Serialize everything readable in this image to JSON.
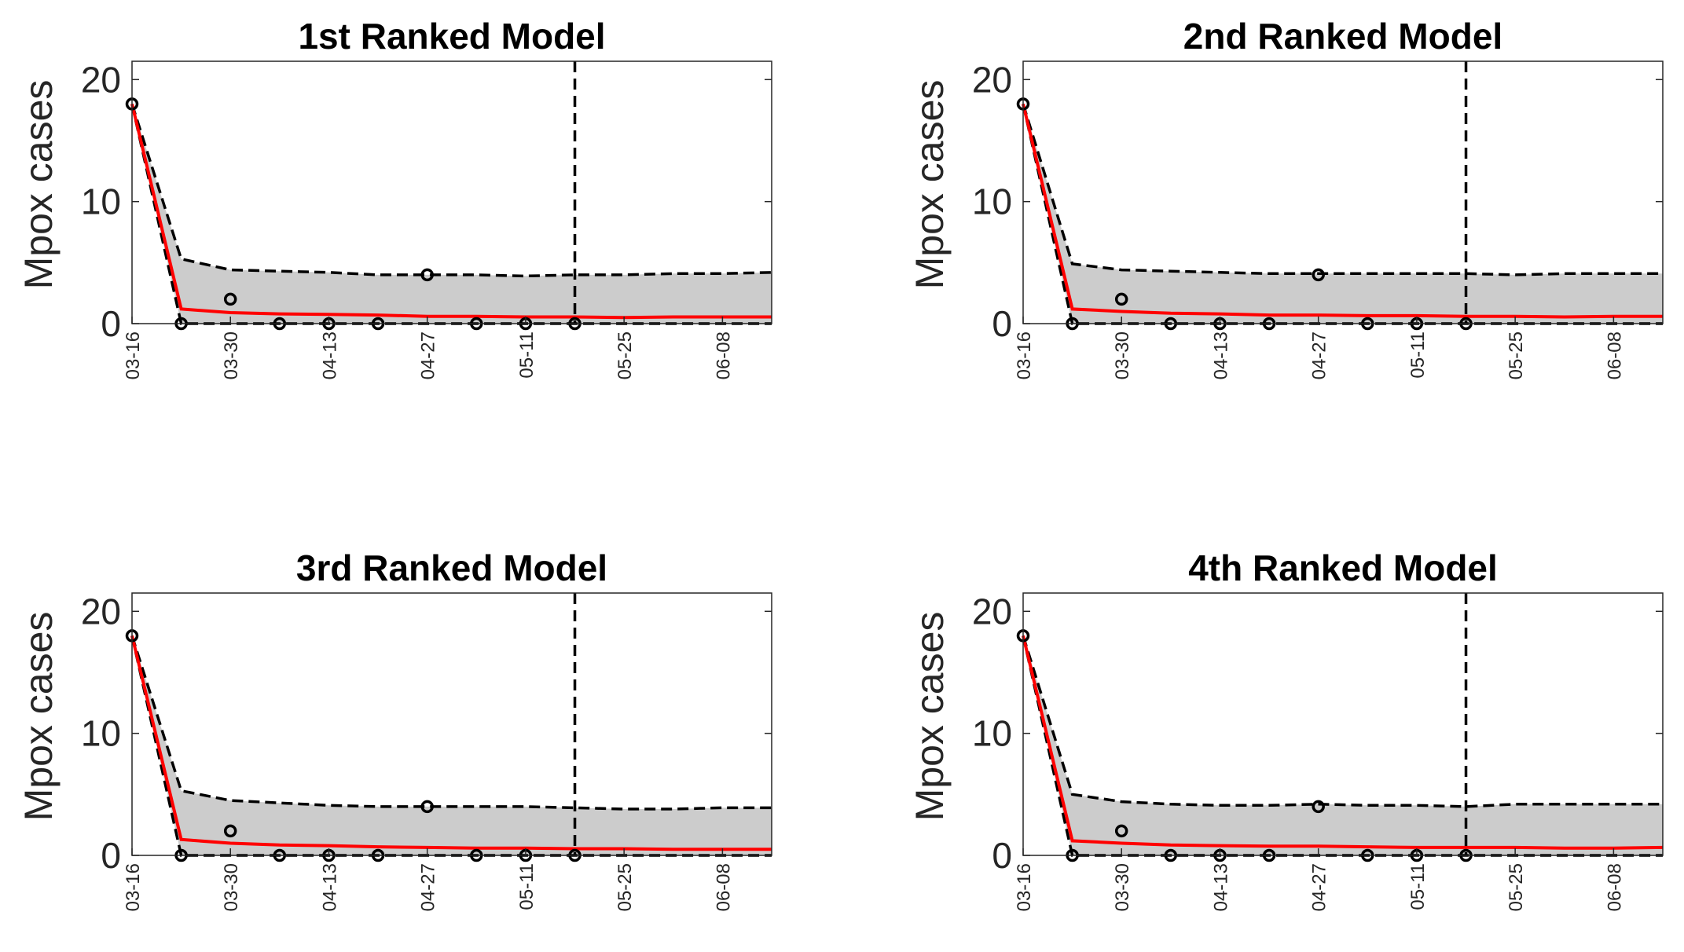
{
  "chart_data": [
    {
      "type": "line",
      "title": "1st Ranked Model",
      "ylabel": "Mpox cases",
      "xlabel": "",
      "ylim": [
        0,
        21.5
      ],
      "yticks": [
        0,
        10,
        20
      ],
      "xticks": [
        "03-16",
        "03-30",
        "04-13",
        "04-27",
        "05-11",
        "05-25",
        "06-08"
      ],
      "grid": false,
      "x": [
        "03-16",
        "03-23",
        "03-30",
        "04-06",
        "04-13",
        "04-20",
        "04-27",
        "05-04",
        "05-11",
        "05-18",
        "05-25",
        "06-01",
        "06-08",
        "06-15"
      ],
      "observed": {
        "x": [
          "03-16",
          "03-23",
          "03-30",
          "04-06",
          "04-13",
          "04-20",
          "04-27",
          "05-04",
          "05-11",
          "05-18"
        ],
        "values": [
          18,
          0,
          2,
          0,
          0,
          0,
          4,
          0,
          0,
          0
        ]
      },
      "forecast_start": "05-18",
      "series": [
        {
          "name": "",
          "role": "mean",
          "color": "#ff0000",
          "values": [
            18,
            1.2,
            0.9,
            0.8,
            0.75,
            0.7,
            0.6,
            0.6,
            0.55,
            0.55,
            0.5,
            0.55,
            0.55,
            0.55
          ]
        },
        {
          "name": "",
          "role": "upper",
          "color": "#000000",
          "values": [
            18,
            5.3,
            4.4,
            4.3,
            4.2,
            4.0,
            4.0,
            4.0,
            3.9,
            4.0,
            4.0,
            4.1,
            4.1,
            4.2
          ]
        },
        {
          "name": "",
          "role": "lower",
          "color": "#000000",
          "values": [
            18,
            0,
            0,
            0,
            0,
            0,
            0,
            0,
            0,
            0,
            0,
            0,
            0,
            0
          ]
        }
      ]
    },
    {
      "type": "line",
      "title": "2nd Ranked Model",
      "ylabel": "Mpox cases",
      "xlabel": "",
      "ylim": [
        0,
        21.5
      ],
      "yticks": [
        0,
        10,
        20
      ],
      "xticks": [
        "03-16",
        "03-30",
        "04-13",
        "04-27",
        "05-11",
        "05-25",
        "06-08"
      ],
      "grid": false,
      "x": [
        "03-16",
        "03-23",
        "03-30",
        "04-06",
        "04-13",
        "04-20",
        "04-27",
        "05-04",
        "05-11",
        "05-18",
        "05-25",
        "06-01",
        "06-08",
        "06-15"
      ],
      "observed": {
        "x": [
          "03-16",
          "03-23",
          "03-30",
          "04-06",
          "04-13",
          "04-20",
          "04-27",
          "05-04",
          "05-11",
          "05-18"
        ],
        "values": [
          18,
          0,
          2,
          0,
          0,
          0,
          4,
          0,
          0,
          0
        ]
      },
      "forecast_start": "05-18",
      "series": [
        {
          "name": "",
          "role": "mean",
          "color": "#ff0000",
          "values": [
            18,
            1.2,
            1.0,
            0.85,
            0.8,
            0.7,
            0.7,
            0.65,
            0.65,
            0.6,
            0.6,
            0.55,
            0.6,
            0.6
          ]
        },
        {
          "name": "",
          "role": "upper",
          "color": "#000000",
          "values": [
            18,
            4.9,
            4.4,
            4.3,
            4.2,
            4.1,
            4.1,
            4.1,
            4.1,
            4.1,
            4.0,
            4.1,
            4.1,
            4.1
          ]
        },
        {
          "name": "",
          "role": "lower",
          "color": "#000000",
          "values": [
            18,
            0,
            0,
            0,
            0,
            0,
            0,
            0,
            0,
            0,
            0,
            0,
            0,
            0
          ]
        }
      ]
    },
    {
      "type": "line",
      "title": "3rd Ranked Model",
      "ylabel": "Mpox cases",
      "xlabel": "",
      "ylim": [
        0,
        21.5
      ],
      "yticks": [
        0,
        10,
        20
      ],
      "xticks": [
        "03-16",
        "03-30",
        "04-13",
        "04-27",
        "05-11",
        "05-25",
        "06-08"
      ],
      "grid": false,
      "x": [
        "03-16",
        "03-23",
        "03-30",
        "04-06",
        "04-13",
        "04-20",
        "04-27",
        "05-04",
        "05-11",
        "05-18",
        "05-25",
        "06-01",
        "06-08",
        "06-15"
      ],
      "observed": {
        "x": [
          "03-16",
          "03-23",
          "03-30",
          "04-06",
          "04-13",
          "04-20",
          "04-27",
          "05-04",
          "05-11",
          "05-18"
        ],
        "values": [
          18,
          0,
          2,
          0,
          0,
          0,
          4,
          0,
          0,
          0
        ]
      },
      "forecast_start": "05-18",
      "series": [
        {
          "name": "",
          "role": "mean",
          "color": "#ff0000",
          "values": [
            18,
            1.3,
            1.0,
            0.85,
            0.8,
            0.7,
            0.65,
            0.6,
            0.6,
            0.55,
            0.55,
            0.5,
            0.5,
            0.5
          ]
        },
        {
          "name": "",
          "role": "upper",
          "color": "#000000",
          "values": [
            18,
            5.3,
            4.5,
            4.3,
            4.1,
            4.0,
            4.0,
            4.0,
            4.0,
            3.9,
            3.8,
            3.8,
            3.9,
            3.9
          ]
        },
        {
          "name": "",
          "role": "lower",
          "color": "#000000",
          "values": [
            18,
            0,
            0,
            0,
            0,
            0,
            0,
            0,
            0,
            0,
            0,
            0,
            0,
            0
          ]
        }
      ]
    },
    {
      "type": "line",
      "title": "4th Ranked Model",
      "ylabel": "Mpox cases",
      "xlabel": "",
      "ylim": [
        0,
        21.5
      ],
      "yticks": [
        0,
        10,
        20
      ],
      "xticks": [
        "03-16",
        "03-30",
        "04-13",
        "04-27",
        "05-11",
        "05-25",
        "06-08"
      ],
      "grid": false,
      "x": [
        "03-16",
        "03-23",
        "03-30",
        "04-06",
        "04-13",
        "04-20",
        "04-27",
        "05-04",
        "05-11",
        "05-18",
        "05-25",
        "06-01",
        "06-08",
        "06-15"
      ],
      "observed": {
        "x": [
          "03-16",
          "03-23",
          "03-30",
          "04-06",
          "04-13",
          "04-20",
          "04-27",
          "05-04",
          "05-11",
          "05-18"
        ],
        "values": [
          18,
          0,
          2,
          0,
          0,
          0,
          4,
          0,
          0,
          0
        ]
      },
      "forecast_start": "05-18",
      "series": [
        {
          "name": "",
          "role": "mean",
          "color": "#ff0000",
          "values": [
            18,
            1.2,
            1.0,
            0.85,
            0.8,
            0.75,
            0.75,
            0.7,
            0.65,
            0.65,
            0.65,
            0.6,
            0.6,
            0.65
          ]
        },
        {
          "name": "",
          "role": "upper",
          "color": "#000000",
          "values": [
            18,
            5.0,
            4.4,
            4.2,
            4.1,
            4.1,
            4.2,
            4.1,
            4.1,
            4.0,
            4.2,
            4.2,
            4.2,
            4.2
          ]
        },
        {
          "name": "",
          "role": "lower",
          "color": "#000000",
          "values": [
            18,
            0,
            0,
            0,
            0,
            0,
            0,
            0,
            0,
            0,
            0,
            0,
            0,
            0
          ]
        }
      ]
    }
  ],
  "colors": {
    "band_fill": "#cccccc",
    "mean_line": "#ff0000",
    "bounds_line": "#000000",
    "forecast_divider": "#000000",
    "observed_marker": "#000000"
  }
}
